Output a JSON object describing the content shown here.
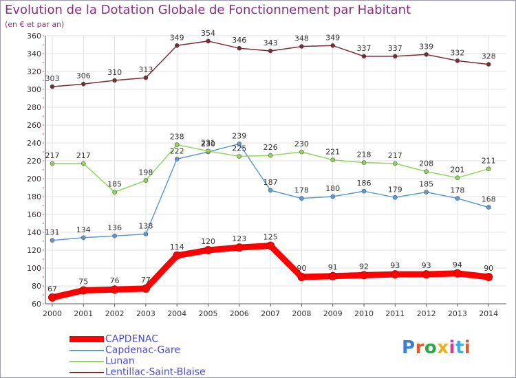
{
  "title": "Evolution de la Dotation Globale de Fonctionnement par Habitant",
  "subtitle": "(en € et par an)",
  "logo": {
    "text": "Proxiti",
    "colors": [
      "#3b7dd8",
      "#e05a2a",
      "#2aa84a",
      "#e8b020",
      "#d83b8a",
      "#3bb0d8",
      "#e05a2a"
    ]
  },
  "chart_data": {
    "type": "line",
    "title": "Evolution de la Dotation Globale de Fonctionnement par Habitant",
    "subtitle": "(en € et par an)",
    "x": [
      "2000",
      "2001",
      "2002",
      "2003",
      "2004",
      "2005",
      "2006",
      "2007",
      "2008",
      "2009",
      "2010",
      "2011",
      "2012",
      "2013",
      "2014"
    ],
    "ylim": [
      60,
      360
    ],
    "yticks": [
      60,
      80,
      100,
      120,
      140,
      160,
      180,
      200,
      220,
      240,
      260,
      280,
      300,
      320,
      340,
      360
    ],
    "grid": true,
    "legend_position": "bottom-left",
    "series": [
      {
        "name": "CAPDENAC",
        "color": "#ff0000",
        "thick": true,
        "values": [
          67,
          75,
          76,
          77,
          114,
          120,
          123,
          125,
          90,
          91,
          92,
          93,
          93,
          94,
          90
        ]
      },
      {
        "name": "Capdenac-Gare",
        "color": "#5b9bd5",
        "thick": false,
        "values": [
          131,
          134,
          136,
          138,
          222,
          230,
          239,
          187,
          178,
          180,
          186,
          179,
          185,
          178,
          168
        ]
      },
      {
        "name": "Lunan",
        "color": "#8fd65a",
        "thick": false,
        "values": [
          217,
          217,
          185,
          198,
          238,
          231,
          225,
          226,
          230,
          221,
          218,
          217,
          208,
          201,
          211
        ]
      },
      {
        "name": "Lentillac-Saint-Blaise",
        "color": "#7a2a34",
        "thick": false,
        "values": [
          303,
          306,
          310,
          313,
          349,
          354,
          346,
          343,
          348,
          349,
          337,
          337,
          339,
          332,
          328
        ]
      }
    ]
  }
}
